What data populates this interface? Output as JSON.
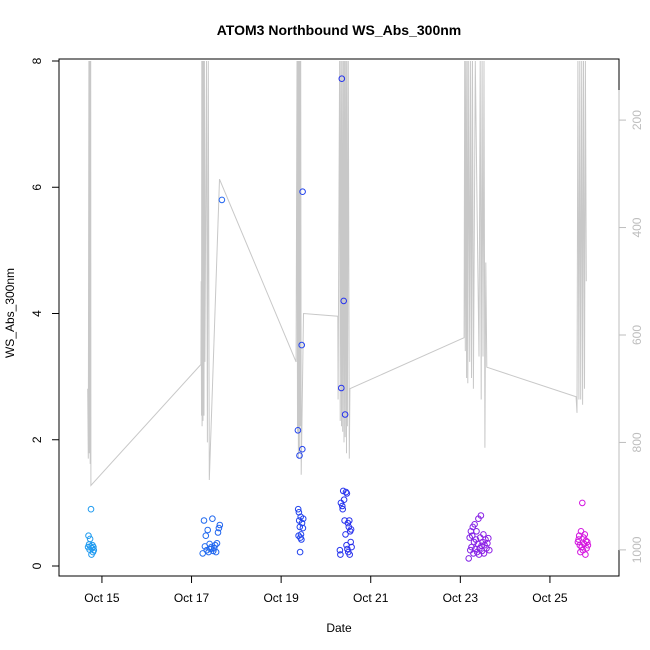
{
  "chart_data": {
    "type": "scatter",
    "title": "ATOM3 Northbound WS_Abs_300nm",
    "xlabel": "Date",
    "ylabel": "WS_Abs_300nm",
    "xlim": [
      "2017-10-14T01:00",
      "2017-10-26T13:00"
    ],
    "ylim": [
      0,
      8
    ],
    "x_ticks": [
      {
        "date": "2017-10-15",
        "label": "Oct 15"
      },
      {
        "date": "2017-10-17",
        "label": "Oct 17"
      },
      {
        "date": "2017-10-19",
        "label": "Oct 19"
      },
      {
        "date": "2017-10-21",
        "label": "Oct 21"
      },
      {
        "date": "2017-10-23",
        "label": "Oct 23"
      },
      {
        "date": "2017-10-25",
        "label": "Oct 25"
      }
    ],
    "y_ticks": [
      0,
      2,
      4,
      6,
      8
    ],
    "y2_reversed": true,
    "y2lim": [
      90,
      1030
    ],
    "y2_ticks": [
      200,
      400,
      600,
      800,
      1000
    ],
    "grid": false,
    "legend": "none",
    "colors": {
      "point_start": "#1fa8f0",
      "point_mid": "#2233ee",
      "point_end": "#ee11dd",
      "profile_line": "#c8c8c8",
      "axis": "#000000",
      "secondary_axis": "#bdbdbd"
    },
    "series": [
      {
        "type": "scatter",
        "points": [
          [
            "2017-10-14T16:34",
            0.3
          ],
          [
            "2017-10-14T16:48",
            0.48
          ],
          [
            "2017-10-14T17:05",
            0.34
          ],
          [
            "2017-10-14T17:22",
            0.26
          ],
          [
            "2017-10-14T17:39",
            0.43
          ],
          [
            "2017-10-14T17:55",
            0.31
          ],
          [
            "2017-10-14T18:10",
            0.9
          ],
          [
            "2017-10-14T18:26",
            0.18
          ],
          [
            "2017-10-14T18:42",
            0.28
          ],
          [
            "2017-10-14T18:58",
            0.33
          ],
          [
            "2017-10-14T19:12",
            0.22
          ],
          [
            "2017-10-14T19:26",
            0.3
          ],
          [
            "2017-10-14T19:40",
            0.25
          ],
          [
            "2017-10-17T06:00",
            0.2
          ],
          [
            "2017-10-17T06:40",
            0.72
          ],
          [
            "2017-10-17T07:10",
            0.31
          ],
          [
            "2017-10-17T07:40",
            0.48
          ],
          [
            "2017-10-17T08:10",
            0.25
          ],
          [
            "2017-10-17T08:40",
            0.57
          ],
          [
            "2017-10-17T09:10",
            0.22
          ],
          [
            "2017-10-17T09:40",
            0.35
          ],
          [
            "2017-10-17T10:10",
            0.27
          ],
          [
            "2017-10-17T10:40",
            0.3
          ],
          [
            "2017-10-17T11:10",
            0.75
          ],
          [
            "2017-10-17T11:40",
            0.24
          ],
          [
            "2017-10-17T12:10",
            0.28
          ],
          [
            "2017-10-17T12:40",
            0.33
          ],
          [
            "2017-10-17T13:10",
            0.22
          ],
          [
            "2017-10-17T13:40",
            0.36
          ],
          [
            "2017-10-17T14:10",
            0.53
          ],
          [
            "2017-10-17T14:40",
            0.6
          ],
          [
            "2017-10-17T15:10",
            0.65
          ],
          [
            "2017-10-17T16:15",
            5.8
          ],
          [
            "2017-10-19T09:00",
            2.15
          ],
          [
            "2017-10-19T09:10",
            0.9
          ],
          [
            "2017-10-19T09:20",
            0.48
          ],
          [
            "2017-10-19T09:30",
            0.85
          ],
          [
            "2017-10-19T09:40",
            0.72
          ],
          [
            "2017-10-19T09:50",
            1.75
          ],
          [
            "2017-10-19T10:00",
            0.62
          ],
          [
            "2017-10-19T10:10",
            0.22
          ],
          [
            "2017-10-19T10:20",
            0.45
          ],
          [
            "2017-10-19T10:30",
            0.78
          ],
          [
            "2017-10-19T10:40",
            0.5
          ],
          [
            "2017-10-19T10:50",
            0.42
          ],
          [
            "2017-10-19T11:00",
            3.5
          ],
          [
            "2017-10-19T11:10",
            0.68
          ],
          [
            "2017-10-19T11:20",
            1.85
          ],
          [
            "2017-10-19T11:30",
            5.93
          ],
          [
            "2017-10-19T11:40",
            0.6
          ],
          [
            "2017-10-19T11:50",
            0.75
          ],
          [
            "2017-10-20T07:30",
            0.25
          ],
          [
            "2017-10-20T07:45",
            0.18
          ],
          [
            "2017-10-20T08:00",
            1.0
          ],
          [
            "2017-10-20T08:15",
            2.82
          ],
          [
            "2017-10-20T08:30",
            7.72
          ],
          [
            "2017-10-20T08:45",
            0.95
          ],
          [
            "2017-10-20T09:00",
            0.9
          ],
          [
            "2017-10-20T09:15",
            1.19
          ],
          [
            "2017-10-20T09:30",
            4.2
          ],
          [
            "2017-10-20T09:45",
            1.05
          ],
          [
            "2017-10-20T10:00",
            0.72
          ],
          [
            "2017-10-20T10:15",
            2.4
          ],
          [
            "2017-10-20T10:30",
            0.5
          ],
          [
            "2017-10-20T10:45",
            1.17
          ],
          [
            "2017-10-20T11:00",
            0.33
          ],
          [
            "2017-10-20T11:15",
            1.15
          ],
          [
            "2017-10-20T11:30",
            0.27
          ],
          [
            "2017-10-20T11:45",
            0.68
          ],
          [
            "2017-10-20T12:00",
            0.22
          ],
          [
            "2017-10-20T12:15",
            0.62
          ],
          [
            "2017-10-20T12:30",
            0.72
          ],
          [
            "2017-10-20T12:45",
            0.18
          ],
          [
            "2017-10-20T13:00",
            0.55
          ],
          [
            "2017-10-20T13:15",
            0.38
          ],
          [
            "2017-10-20T13:30",
            0.58
          ],
          [
            "2017-10-20T13:45",
            0.3
          ],
          [
            "2017-10-23T04:30",
            0.12
          ],
          [
            "2017-10-23T05:00",
            0.45
          ],
          [
            "2017-10-23T05:20",
            0.25
          ],
          [
            "2017-10-23T05:40",
            0.55
          ],
          [
            "2017-10-23T06:00",
            0.3
          ],
          [
            "2017-10-23T06:20",
            0.48
          ],
          [
            "2017-10-23T06:40",
            0.62
          ],
          [
            "2017-10-23T07:00",
            0.2
          ],
          [
            "2017-10-23T07:20",
            0.38
          ],
          [
            "2017-10-23T07:40",
            0.66
          ],
          [
            "2017-10-23T08:00",
            0.27
          ],
          [
            "2017-10-23T08:20",
            0.42
          ],
          [
            "2017-10-23T08:40",
            0.55
          ],
          [
            "2017-10-23T09:00",
            0.22
          ],
          [
            "2017-10-23T09:20",
            0.35
          ],
          [
            "2017-10-23T09:40",
            0.75
          ],
          [
            "2017-10-23T10:00",
            0.18
          ],
          [
            "2017-10-23T10:20",
            0.28
          ],
          [
            "2017-10-23T10:40",
            0.45
          ],
          [
            "2017-10-23T11:00",
            0.8
          ],
          [
            "2017-10-23T11:20",
            0.32
          ],
          [
            "2017-10-23T11:40",
            0.24
          ],
          [
            "2017-10-23T12:00",
            0.38
          ],
          [
            "2017-10-23T12:20",
            0.5
          ],
          [
            "2017-10-23T12:40",
            0.2
          ],
          [
            "2017-10-23T13:00",
            0.33
          ],
          [
            "2017-10-23T13:30",
            0.42
          ],
          [
            "2017-10-23T14:00",
            0.28
          ],
          [
            "2017-10-23T14:30",
            0.36
          ],
          [
            "2017-10-23T15:00",
            0.44
          ],
          [
            "2017-10-23T15:30",
            0.25
          ],
          [
            "2017-10-25T15:00",
            0.38
          ],
          [
            "2017-10-25T15:20",
            0.42
          ],
          [
            "2017-10-25T15:40",
            0.48
          ],
          [
            "2017-10-25T16:00",
            0.33
          ],
          [
            "2017-10-25T16:20",
            0.22
          ],
          [
            "2017-10-25T16:40",
            0.55
          ],
          [
            "2017-10-25T17:00",
            0.3
          ],
          [
            "2017-10-25T17:20",
            1.0
          ],
          [
            "2017-10-25T17:40",
            0.25
          ],
          [
            "2017-10-25T18:00",
            0.45
          ],
          [
            "2017-10-25T18:20",
            0.35
          ],
          [
            "2017-10-25T18:40",
            0.5
          ],
          [
            "2017-10-25T19:00",
            0.18
          ],
          [
            "2017-10-25T19:20",
            0.4
          ],
          [
            "2017-10-25T19:40",
            0.28
          ],
          [
            "2017-10-25T20:00",
            0.38
          ],
          [
            "2017-10-25T20:20",
            0.33
          ]
        ]
      },
      {
        "type": "line",
        "axis": "right",
        "points": [
          [
            "2017-10-14T16:24",
            700
          ],
          [
            "2017-10-14T16:43",
            830
          ],
          [
            "2017-10-14T17:00",
            90
          ],
          [
            "2017-10-14T17:14",
            820
          ],
          [
            "2017-10-14T17:29",
            90
          ],
          [
            "2017-10-14T17:43",
            840
          ],
          [
            "2017-10-14T18:00",
            90
          ],
          [
            "2017-10-14T18:05",
            880
          ],
          [
            "2017-10-17T05:00",
            655
          ],
          [
            "2017-10-17T05:10",
            500
          ],
          [
            "2017-10-17T05:20",
            750
          ],
          [
            "2017-10-17T05:30",
            90
          ],
          [
            "2017-10-17T05:40",
            770
          ],
          [
            "2017-10-17T05:55",
            90
          ],
          [
            "2017-10-17T06:10",
            760
          ],
          [
            "2017-10-17T06:25",
            90
          ],
          [
            "2017-10-17T06:40",
            750
          ],
          [
            "2017-10-17T06:55",
            90
          ],
          [
            "2017-10-17T07:10",
            650
          ],
          [
            "2017-10-17T08:00",
            90
          ],
          [
            "2017-10-17T08:30",
            800
          ],
          [
            "2017-10-17T09:00",
            90
          ],
          [
            "2017-10-17T09:30",
            870
          ],
          [
            "2017-10-17T15:00",
            310
          ],
          [
            "2017-10-19T08:00",
            650
          ],
          [
            "2017-10-19T08:30",
            90
          ],
          [
            "2017-10-19T08:45",
            780
          ],
          [
            "2017-10-19T09:00",
            90
          ],
          [
            "2017-10-19T09:15",
            830
          ],
          [
            "2017-10-19T09:30",
            90
          ],
          [
            "2017-10-19T09:45",
            820
          ],
          [
            "2017-10-19T10:00",
            90
          ],
          [
            "2017-10-19T10:15",
            770
          ],
          [
            "2017-10-19T10:30",
            90
          ],
          [
            "2017-10-19T10:45",
            860
          ],
          [
            "2017-10-19T12:00",
            560
          ],
          [
            "2017-10-20T06:20",
            565
          ],
          [
            "2017-10-20T06:30",
            720
          ],
          [
            "2017-10-20T07:20",
            90
          ],
          [
            "2017-10-20T07:40",
            760
          ],
          [
            "2017-10-20T08:00",
            90
          ],
          [
            "2017-10-20T08:20",
            770
          ],
          [
            "2017-10-20T08:40",
            90
          ],
          [
            "2017-10-20T09:00",
            780
          ],
          [
            "2017-10-20T09:20",
            90
          ],
          [
            "2017-10-20T09:40",
            800
          ],
          [
            "2017-10-20T10:00",
            90
          ],
          [
            "2017-10-20T10:20",
            790
          ],
          [
            "2017-10-20T10:40",
            90
          ],
          [
            "2017-10-20T11:00",
            820
          ],
          [
            "2017-10-20T11:15",
            90
          ],
          [
            "2017-10-20T11:30",
            770
          ],
          [
            "2017-10-20T12:00",
            90
          ],
          [
            "2017-10-20T12:30",
            830
          ],
          [
            "2017-10-20T12:50",
            700
          ],
          [
            "2017-10-23T02:00",
            605
          ],
          [
            "2017-10-23T02:20",
            90
          ],
          [
            "2017-10-23T02:40",
            630
          ],
          [
            "2017-10-23T03:00",
            90
          ],
          [
            "2017-10-23T03:20",
            680
          ],
          [
            "2017-10-23T03:40",
            90
          ],
          [
            "2017-10-23T04:00",
            690
          ],
          [
            "2017-10-23T04:30",
            90
          ],
          [
            "2017-10-23T05:00",
            650
          ],
          [
            "2017-10-23T05:30",
            90
          ],
          [
            "2017-10-23T06:00",
            680
          ],
          [
            "2017-10-23T06:30",
            90
          ],
          [
            "2017-10-23T07:00",
            700
          ],
          [
            "2017-10-23T08:00",
            90
          ],
          [
            "2017-10-23T09:00",
            370
          ],
          [
            "2017-10-23T10:00",
            640
          ],
          [
            "2017-10-23T10:40",
            90
          ],
          [
            "2017-10-23T11:10",
            720
          ],
          [
            "2017-10-23T11:40",
            90
          ],
          [
            "2017-10-23T12:10",
            640
          ],
          [
            "2017-10-23T12:40",
            90
          ],
          [
            "2017-10-23T13:10",
            810
          ],
          [
            "2017-10-23T13:40",
            465
          ],
          [
            "2017-10-23T14:10",
            660
          ],
          [
            "2017-10-25T14:00",
            715
          ],
          [
            "2017-10-25T14:30",
            745
          ],
          [
            "2017-10-25T15:00",
            90
          ],
          [
            "2017-10-25T15:30",
            720
          ],
          [
            "2017-10-25T16:00",
            90
          ],
          [
            "2017-10-25T16:30",
            720
          ],
          [
            "2017-10-25T17:00",
            90
          ],
          [
            "2017-10-25T17:30",
            730
          ],
          [
            "2017-10-25T18:00",
            90
          ],
          [
            "2017-10-25T18:30",
            700
          ],
          [
            "2017-10-25T19:00",
            90
          ],
          [
            "2017-10-25T19:30",
            500
          ]
        ]
      }
    ]
  }
}
